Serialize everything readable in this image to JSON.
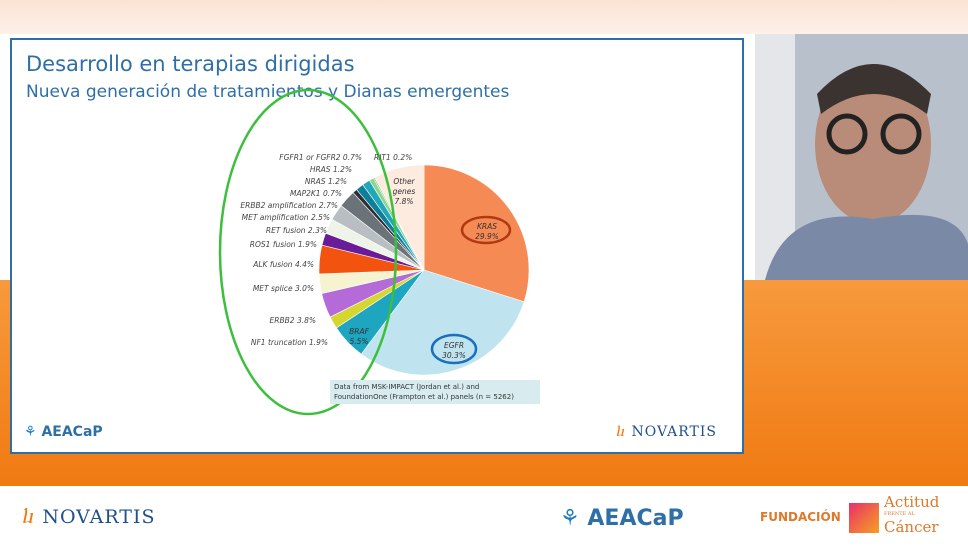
{
  "slide": {
    "title": "Desarrollo en terapias dirigidas",
    "subtitle": "Nueva generación de tratamientos y Dianas emergentes",
    "note_line1": "Data from MSK-IMPACT (Jordan et al.) and",
    "note_line2": "FoundationOne (Frampton et al.) panels (n = 5262)",
    "logo_left": "AEACaP",
    "logo_right": "NOVARTIS"
  },
  "footer": {
    "novartis": "NOVARTIS",
    "aeacap": "AEACaP",
    "fundacion": "FUNDACIÓN",
    "actitud": "Actitud",
    "frente": "FRENTE AL",
    "cancer": "Cáncer"
  },
  "colors": {
    "accent": "#2e6fa7",
    "orange": "#f07a12",
    "highlight_green": "#3cbf3c"
  },
  "chart_data": {
    "type": "pie",
    "start": "top, clockwise",
    "slices": [
      {
        "label": "KRAS",
        "value": 29.9,
        "text": "29.9%",
        "color": "#f68a55",
        "highlight": "circle-red"
      },
      {
        "label": "EGFR",
        "value": 30.3,
        "text": "30.3%",
        "color": "#bfe3ef",
        "highlight": "circle-blue"
      },
      {
        "label": "BRAF",
        "value": 5.5,
        "text": "5.5%",
        "color": "#1ea5c0"
      },
      {
        "label": "NF1 truncation",
        "value": 1.9,
        "text": "NF1 truncation 1.9%",
        "color": "#d6d630"
      },
      {
        "label": "ERBB2",
        "value": 3.8,
        "text": "ERBB2 3.8%",
        "color": "#b46bd8"
      },
      {
        "label": "MET splice",
        "value": 3.0,
        "text": "MET splice 3.0%",
        "color": "#f5f3d0"
      },
      {
        "label": "ALK fusion",
        "value": 4.4,
        "text": "ALK fusion 4.4%",
        "color": "#f2540f"
      },
      {
        "label": "ROS1 fusion",
        "value": 1.9,
        "text": "ROS1 fusion 1.9%",
        "color": "#6a1b9a"
      },
      {
        "label": "RET fusion",
        "value": 2.3,
        "text": "RET fusion 2.3%",
        "color": "#eef5e8"
      },
      {
        "label": "MET amplification",
        "value": 2.5,
        "text": "MET amplification 2.5%",
        "color": "#b8bec2"
      },
      {
        "label": "ERBB2 amplification",
        "value": 2.7,
        "text": "ERBB2 amplification 2.7%",
        "color": "#6b7379"
      },
      {
        "label": "MAP2K1",
        "value": 0.7,
        "text": "MAP2K1 0.7%",
        "color": "#2c2f33"
      },
      {
        "label": "NRAS",
        "value": 1.2,
        "text": "NRAS 1.2%",
        "color": "#0d7f99"
      },
      {
        "label": "HRAS",
        "value": 1.2,
        "text": "HRAS 1.2%",
        "color": "#20a8b8"
      },
      {
        "label": "FGFR1 or FGFR2",
        "value": 0.7,
        "text": "FGFR1 or FGFR2 0.7%",
        "color": "#8fd48f"
      },
      {
        "label": "RIT1",
        "value": 0.2,
        "text": "RIT1 0.2%",
        "color": "#5ec95e"
      },
      {
        "label": "Other genes",
        "value": 7.8,
        "text": "7.8%",
        "color": "#fdebe0"
      }
    ]
  }
}
